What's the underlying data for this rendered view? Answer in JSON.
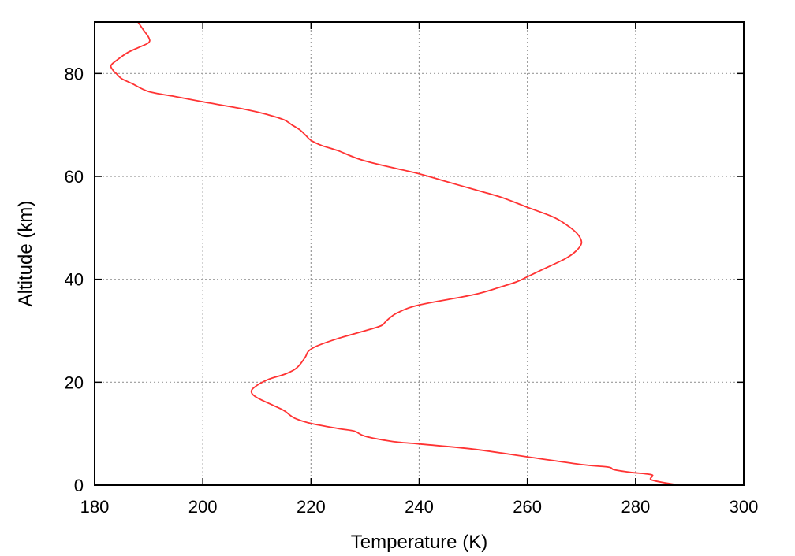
{
  "chart_data": {
    "type": "line",
    "title": "",
    "xlabel": "Temperature (K)",
    "ylabel": "Altitude (km)",
    "xlim": [
      180,
      300
    ],
    "ylim": [
      0,
      90
    ],
    "x_ticks": [
      180,
      200,
      220,
      240,
      260,
      280,
      300
    ],
    "y_ticks": [
      0,
      20,
      40,
      60,
      80
    ],
    "x_tick_labels": [
      "180",
      "200",
      "220",
      "240",
      "260",
      "280",
      "300"
    ],
    "y_tick_labels": [
      "0",
      "20",
      "40",
      "60",
      "80"
    ],
    "grid": true,
    "legend": "none",
    "line_color": "#ff3333",
    "series": [
      {
        "x": [
          288,
          283,
          283,
          279,
          276,
          275,
          270,
          260,
          250,
          240,
          235,
          230,
          228,
          225,
          220,
          217,
          215,
          213,
          210,
          209,
          209.5,
          212,
          215,
          217,
          218,
          219,
          219.5,
          221,
          225,
          230,
          233,
          234,
          236,
          240,
          250,
          255,
          258,
          260,
          263,
          267,
          269,
          270,
          269.5,
          268,
          265,
          260,
          255,
          250,
          245,
          240,
          230,
          225,
          222,
          220,
          219,
          218,
          216.5,
          215,
          212,
          208,
          200,
          195,
          190,
          187,
          185,
          184,
          183.5,
          183,
          184,
          186,
          188,
          190,
          190,
          189,
          188
        ],
        "y": [
          0,
          1,
          2,
          2.5,
          3,
          3.5,
          4,
          5.5,
          7,
          8,
          8.5,
          9.5,
          10.5,
          11,
          12,
          13,
          14.5,
          15.5,
          17,
          18,
          19,
          20.5,
          21.5,
          22.5,
          23.5,
          25,
          26,
          27,
          28.5,
          30,
          31,
          32,
          33.5,
          35,
          37,
          38.5,
          39.5,
          40.5,
          42,
          44,
          45.5,
          47,
          48.5,
          50,
          52,
          54,
          56,
          57.5,
          59,
          60.5,
          63,
          65,
          66,
          67,
          68,
          69,
          70,
          71,
          72,
          73,
          74.5,
          75.5,
          76.5,
          78,
          79,
          80,
          80.5,
          81.5,
          82.5,
          84,
          85,
          86,
          87,
          88.5,
          90
        ]
      }
    ]
  }
}
